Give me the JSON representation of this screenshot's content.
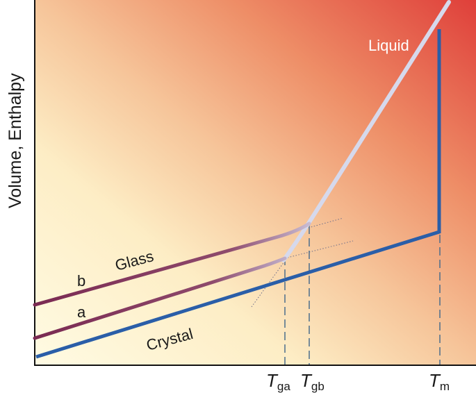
{
  "axes": {
    "ylabel": "Volume, Enthalpy",
    "xlabel": "",
    "x_ticks": [
      {
        "symbol": "T",
        "sub": "ga"
      },
      {
        "symbol": "T",
        "sub": "gb"
      },
      {
        "symbol": "T",
        "sub": "m"
      }
    ]
  },
  "labels": {
    "liquid": "Liquid",
    "glass": "Glass",
    "crystal": "Crystal",
    "a": "a",
    "b": "b"
  },
  "colors": {
    "crystal": "#2a5ea8",
    "glass": "#7a2a52",
    "liquid": "#d6d9ec",
    "background_cool": "#fff6d6",
    "background_hot": "#e24a3a"
  }
}
